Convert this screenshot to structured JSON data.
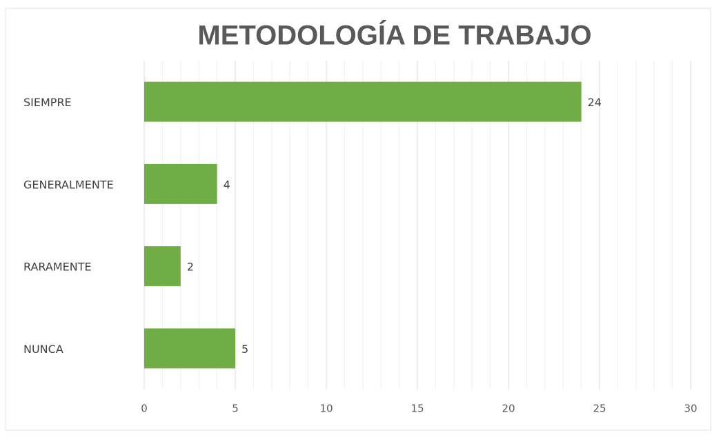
{
  "chart_data": {
    "type": "bar",
    "orientation": "horizontal",
    "title": "METODOLOGÍA DE TRABAJO",
    "categories": [
      "SIEMPRE",
      "GENERALMENTE",
      "RARAMENTE",
      "NUNCA"
    ],
    "values": [
      24,
      4,
      2,
      5
    ],
    "color": "#70ad47",
    "xlim": [
      0,
      30
    ],
    "xticks": [
      0,
      5,
      10,
      15,
      20,
      25,
      30
    ],
    "xminorticks": [
      1,
      2,
      3,
      4,
      6,
      7,
      8,
      9,
      11,
      12,
      13,
      14,
      16,
      17,
      18,
      19,
      21,
      22,
      23,
      24,
      26,
      27,
      28,
      29
    ],
    "grid": true,
    "data_labels": true
  }
}
